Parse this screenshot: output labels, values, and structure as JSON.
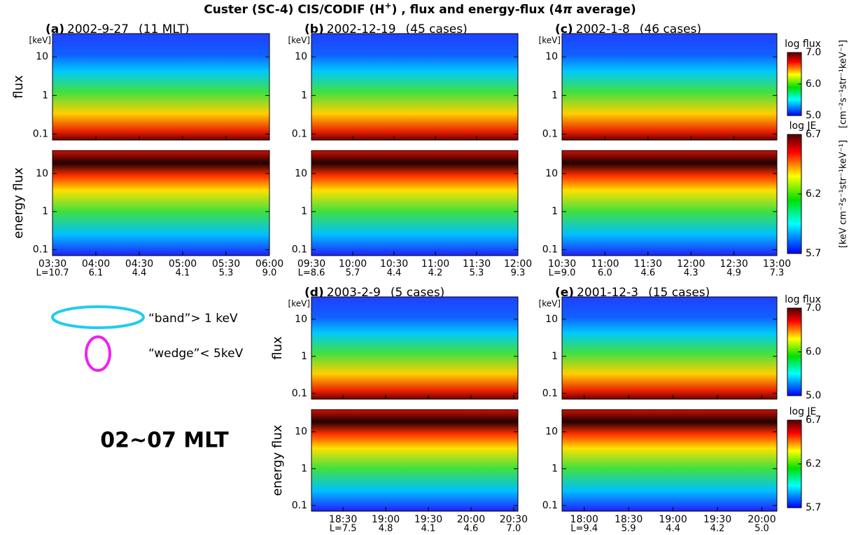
{
  "title": [
    "Custer (SC-4)  CIS/CODIF (H",
    "+",
    ") , flux and energy-flux (4",
    "π",
    " average)"
  ],
  "chart_data": [
    {
      "type": "spectrogram",
      "label": "(a)",
      "date": "2002-9-27",
      "note": "(11 MLT)",
      "yunit": "[keV]",
      "ylabels": [
        "flux",
        "energy flux"
      ],
      "log_y": true,
      "ylim": [
        0.07,
        40
      ],
      "yticks": [
        0.1,
        1,
        10
      ],
      "xlim": [
        3.5,
        6.0
      ],
      "xticks": [
        {
          "value": 3.5,
          "label": "03:30"
        },
        {
          "value": 4.0,
          "label": "04:00"
        },
        {
          "value": 4.5,
          "label": "04:30"
        },
        {
          "value": 5.0,
          "label": "05:00"
        },
        {
          "value": 5.5,
          "label": "05:30"
        },
        {
          "value": 6.0,
          "label": "06:00"
        }
      ],
      "L_labels": [
        "L=10.7",
        "6.1",
        "4.4",
        "4.1",
        "5.3",
        "9.0"
      ]
    },
    {
      "type": "spectrogram",
      "label": "(b)",
      "date": "2002-12-19",
      "note": "(45 cases)",
      "yunit": "[keV]",
      "log_y": true,
      "ylim": [
        0.07,
        40
      ],
      "yticks": [
        0.1,
        1,
        10
      ],
      "xlim": [
        9.5,
        12.0
      ],
      "xticks": [
        {
          "value": 9.5,
          "label": "09:30"
        },
        {
          "value": 10.0,
          "label": "10:00"
        },
        {
          "value": 10.5,
          "label": "10:30"
        },
        {
          "value": 11.0,
          "label": "11:00"
        },
        {
          "value": 11.5,
          "label": "11:30"
        },
        {
          "value": 12.0,
          "label": "12:00"
        }
      ],
      "L_labels": [
        "L=8.6",
        "5.7",
        "4.4",
        "4.2",
        "5.3",
        "9.3"
      ]
    },
    {
      "type": "spectrogram",
      "label": "(c)",
      "date": "2002-1-8",
      "note": "(46 cases)",
      "yunit": "[keV]",
      "log_y": true,
      "ylim": [
        0.07,
        40
      ],
      "yticks": [
        0.1,
        1,
        10
      ],
      "xlim": [
        10.5,
        13.0
      ],
      "xticks": [
        {
          "value": 10.5,
          "label": "10:30"
        },
        {
          "value": 11.0,
          "label": "11:00"
        },
        {
          "value": 11.5,
          "label": "11:30"
        },
        {
          "value": 12.0,
          "label": "12:00"
        },
        {
          "value": 12.5,
          "label": "12:30"
        },
        {
          "value": 13.0,
          "label": "13:00"
        }
      ],
      "L_labels": [
        "L=9.0",
        "6.0",
        "4.6",
        "4.3",
        "4.9",
        "7.3"
      ]
    },
    {
      "type": "spectrogram",
      "label": "(d)",
      "date": "2003-2-9",
      "note": "(5 cases)",
      "yunit": "[keV]",
      "ylabels": [
        "flux",
        "energy flux"
      ],
      "log_y": true,
      "ylim": [
        0.07,
        40
      ],
      "yticks": [
        0.1,
        1,
        10
      ],
      "xlim": [
        18.13,
        20.55
      ],
      "xticks": [
        {
          "value": 18.5,
          "label": "18:30"
        },
        {
          "value": 19.0,
          "label": "19:00"
        },
        {
          "value": 19.5,
          "label": "19:30"
        },
        {
          "value": 20.0,
          "label": "20:00"
        },
        {
          "value": 20.5,
          "label": "20:30"
        }
      ],
      "L_labels": [
        "L=7.5",
        "4.8",
        "4.1",
        "4.6",
        "7.0"
      ]
    },
    {
      "type": "spectrogram",
      "label": "(e)",
      "date": "2001-12-3",
      "note": "(15 cases)",
      "yunit": "[keV]",
      "log_y": true,
      "ylim": [
        0.07,
        40
      ],
      "yticks": [
        0.1,
        1,
        10
      ],
      "xlim": [
        17.75,
        20.17
      ],
      "xticks": [
        {
          "value": 18.0,
          "label": "18:00"
        },
        {
          "value": 18.5,
          "label": "18:30"
        },
        {
          "value": 19.0,
          "label": "19:00"
        },
        {
          "value": 19.5,
          "label": "19:30"
        },
        {
          "value": 20.0,
          "label": "20:00"
        }
      ],
      "L_labels": [
        "L=9.4",
        "5.9",
        "4.4",
        "4.2",
        "5.0"
      ]
    }
  ],
  "colorbars": [
    {
      "label": "log flux",
      "lim": [
        5,
        7
      ],
      "ticks": [
        {
          "value": 5,
          "label": "5.0"
        },
        {
          "value": 6,
          "label": "6.0"
        },
        {
          "value": 7,
          "label": "7.0"
        }
      ],
      "unit": "[cm⁻²s⁻¹str⁻¹keV⁻¹]"
    },
    {
      "label": "log JE",
      "lim": [
        5.7,
        6.7
      ],
      "ticks": [
        5.7,
        6.2,
        6.7
      ],
      "unit": "[keV cm⁻²s⁻¹str⁻¹keV⁻¹]"
    },
    {
      "label": "log flux",
      "lim": [
        5,
        7
      ],
      "ticks": [
        {
          "value": 5,
          "label": "5.0"
        },
        {
          "value": 6,
          "label": "6.0"
        },
        {
          "value": 7,
          "label": "7.0"
        }
      ]
    },
    {
      "label": "log JE",
      "lim": [
        5.7,
        6.7
      ],
      "ticks": [
        5.7,
        6.2,
        6.7
      ]
    }
  ],
  "legend": [
    {
      "label": "“band”> 1 keV",
      "color": "#22ccee"
    },
    {
      "label": "“wedge”< 5keV",
      "color": "#ee22ee"
    }
  ],
  "annotation": "02~07 MLT"
}
